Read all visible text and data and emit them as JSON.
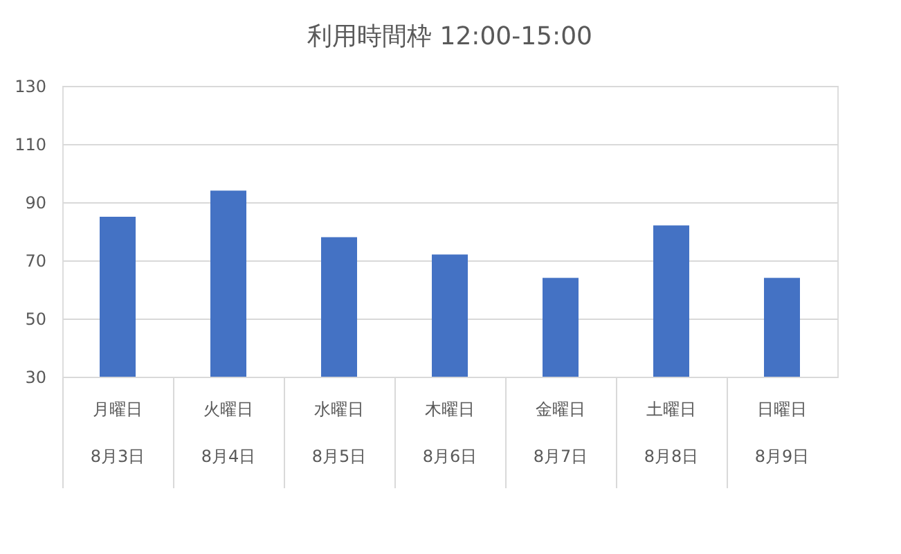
{
  "chart_data": {
    "type": "bar",
    "title": "利用時間枠 12:00-15:00",
    "categories": [
      "月曜日\n8月3日",
      "火曜日\n8月4日",
      "水曜日\n8月5日",
      "木曜日\n8月6日",
      "金曜日\n8月7日",
      "土曜日\n8月8日",
      "日曜日\n8月9日"
    ],
    "series": [
      {
        "color": "#4472c4",
        "values": [
          85,
          94,
          78,
          72,
          64,
          82,
          64
        ]
      }
    ],
    "ylim": [
      30,
      130
    ],
    "yticks": [
      30,
      50,
      70,
      90,
      110,
      130
    ],
    "grid": "y",
    "legend": false
  }
}
